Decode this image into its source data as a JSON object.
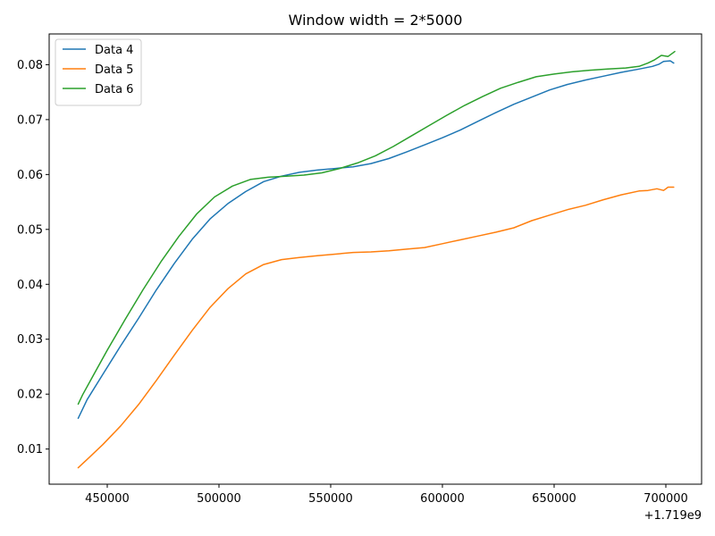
{
  "chart_data": {
    "type": "line",
    "title": "Window width = 2*5000",
    "xlabel": "",
    "ylabel": "",
    "x_offset_label": "+1.719e9",
    "xlim": [
      424000,
      716000
    ],
    "ylim": [
      0.0036,
      0.0856
    ],
    "x_ticks": [
      450000,
      500000,
      550000,
      600000,
      650000,
      700000
    ],
    "x_tick_labels": [
      "450000",
      "500000",
      "550000",
      "600000",
      "650000",
      "700000"
    ],
    "y_ticks": [
      0.01,
      0.02,
      0.03,
      0.04,
      0.05,
      0.06,
      0.07,
      0.08
    ],
    "y_tick_labels": [
      "0.01",
      "0.02",
      "0.03",
      "0.04",
      "0.05",
      "0.06",
      "0.07",
      "0.08"
    ],
    "grid": false,
    "legend": "top-left",
    "series": [
      {
        "name": "Data 4",
        "color": "#1f77b4",
        "x": [
          437000,
          441000,
          448000,
          456000,
          464000,
          472000,
          480000,
          488000,
          496000,
          504000,
          512000,
          520000,
          528000,
          536000,
          544000,
          552000,
          560000,
          568000,
          576000,
          584000,
          592000,
          600000,
          608000,
          616000,
          624000,
          632000,
          640000,
          648000,
          656000,
          664000,
          672000,
          680000,
          688000,
          694000,
          697000,
          699000,
          702000,
          703500
        ],
        "y": [
          0.0156,
          0.019,
          0.0236,
          0.0288,
          0.0338,
          0.039,
          0.0438,
          0.0482,
          0.0519,
          0.0547,
          0.0569,
          0.0587,
          0.0597,
          0.0604,
          0.0608,
          0.0611,
          0.0614,
          0.062,
          0.0629,
          0.0641,
          0.0654,
          0.0667,
          0.0681,
          0.0697,
          0.0713,
          0.0728,
          0.0741,
          0.0754,
          0.0764,
          0.0772,
          0.0779,
          0.0786,
          0.0792,
          0.0797,
          0.0801,
          0.0806,
          0.0807,
          0.0803
        ]
      },
      {
        "name": "Data 5",
        "color": "#ff7f0e",
        "x": [
          437000,
          442000,
          448000,
          456000,
          464000,
          472000,
          480000,
          488000,
          496000,
          504000,
          512000,
          520000,
          528000,
          536000,
          544000,
          552000,
          560000,
          568000,
          576000,
          584000,
          592000,
          600000,
          608000,
          616000,
          624000,
          632000,
          640000,
          648000,
          656000,
          664000,
          672000,
          680000,
          688000,
          692000,
          696000,
          699000,
          701000,
          703500
        ],
        "y": [
          0.0066,
          0.0085,
          0.0108,
          0.0142,
          0.0181,
          0.0225,
          0.0271,
          0.0316,
          0.0358,
          0.0392,
          0.0419,
          0.0436,
          0.0445,
          0.0449,
          0.0452,
          0.0455,
          0.0458,
          0.0459,
          0.0461,
          0.0464,
          0.0467,
          0.0474,
          0.0481,
          0.0488,
          0.0495,
          0.0503,
          0.0516,
          0.0526,
          0.0536,
          0.0544,
          0.0554,
          0.0563,
          0.057,
          0.0571,
          0.0574,
          0.0571,
          0.0577,
          0.0577
        ]
      },
      {
        "name": "Data 6",
        "color": "#2ca02c",
        "x": [
          437000,
          439000,
          444000,
          450000,
          458000,
          466000,
          474000,
          482000,
          490000,
          498000,
          506000,
          514000,
          522000,
          530000,
          538000,
          546000,
          554000,
          562000,
          570000,
          578000,
          586000,
          594000,
          602000,
          610000,
          618000,
          626000,
          634000,
          642000,
          650000,
          658000,
          666000,
          674000,
          682000,
          688000,
          692000,
          695000,
          698000,
          701000,
          704000
        ],
        "y": [
          0.0182,
          0.0199,
          0.0236,
          0.028,
          0.0336,
          0.039,
          0.0441,
          0.0487,
          0.0528,
          0.0559,
          0.0579,
          0.0591,
          0.0595,
          0.0597,
          0.0599,
          0.0603,
          0.0611,
          0.0621,
          0.0634,
          0.0651,
          0.067,
          0.0689,
          0.0708,
          0.0726,
          0.0742,
          0.0757,
          0.0768,
          0.0778,
          0.0783,
          0.0787,
          0.079,
          0.0792,
          0.0794,
          0.0797,
          0.0803,
          0.0809,
          0.0817,
          0.0815,
          0.0824
        ]
      }
    ]
  }
}
